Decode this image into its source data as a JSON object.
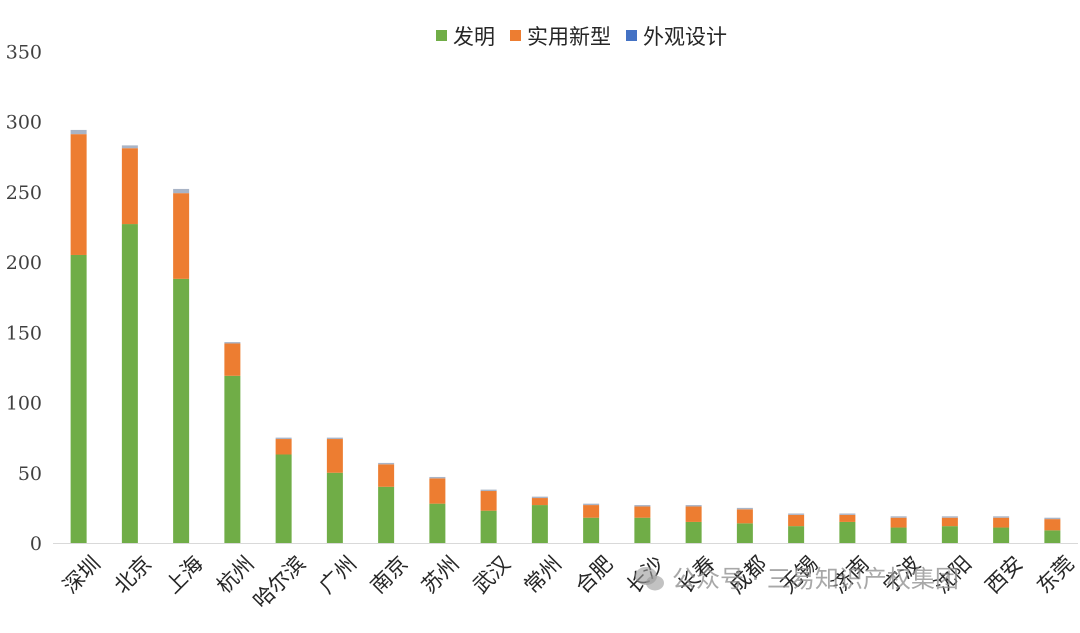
{
  "chart_data": {
    "type": "bar",
    "stacked": true,
    "categories": [
      "深圳",
      "北京",
      "上海",
      "杭州",
      "哈尔滨",
      "广州",
      "南京",
      "苏州",
      "武汉",
      "常州",
      "合肥",
      "长沙",
      "长春",
      "成都",
      "无锡",
      "济南",
      "宁波",
      "沈阳",
      "西安",
      "东莞"
    ],
    "series": [
      {
        "name": "发明",
        "color": "#70ad47",
        "values": [
          205,
          227,
          188,
          119,
          63,
          50,
          40,
          28,
          23,
          27,
          18,
          18,
          15,
          14,
          12,
          15,
          11,
          12,
          11,
          9
        ]
      },
      {
        "name": "实用新型",
        "color": "#ed7d31",
        "values": [
          86,
          54,
          61,
          23,
          11,
          24,
          16,
          18,
          14,
          5,
          9,
          8,
          11,
          10,
          8,
          5,
          7,
          6,
          7,
          8
        ]
      },
      {
        "name": "外观设计",
        "color": "#4472c4",
        "values": [
          3,
          2,
          3,
          1,
          1,
          1,
          1,
          1,
          1,
          1,
          1,
          1,
          1,
          1,
          1,
          1,
          1,
          1,
          1,
          1
        ]
      }
    ],
    "yticks": [
      "0",
      "50",
      "100",
      "150",
      "200",
      "250",
      "300",
      "350"
    ],
    "ylim": [
      0,
      350
    ],
    "legend_position": "top",
    "grid": false
  },
  "watermark": {
    "text": "公众号 · 三易知识产权集团"
  }
}
